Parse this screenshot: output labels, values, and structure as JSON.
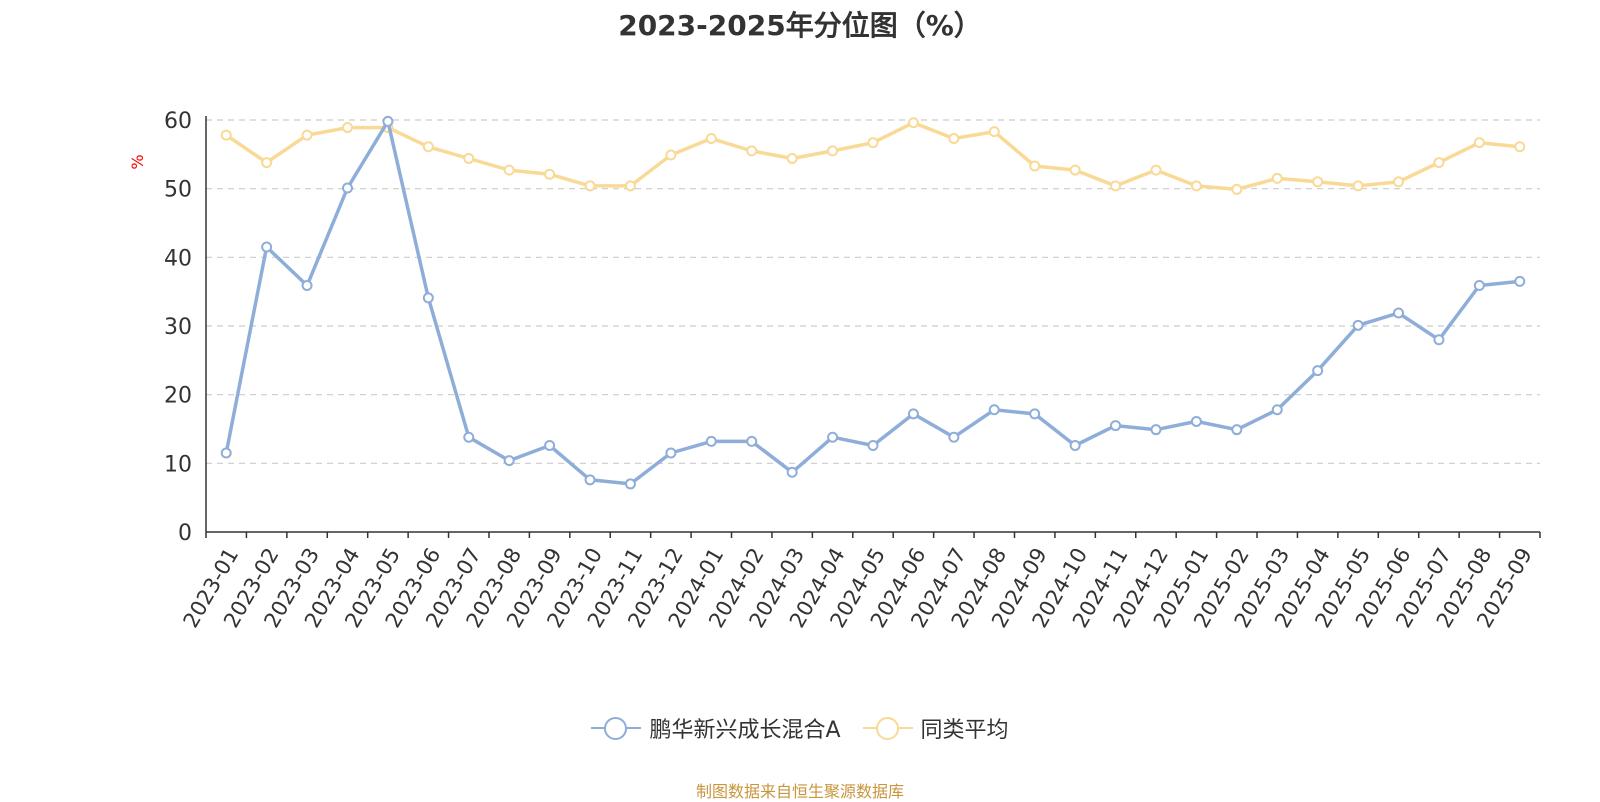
{
  "title": "2023-2025年分位图（%）",
  "source_text": "制图数据来自恒生聚源数据库",
  "colors": {
    "fund": "#8eaed9",
    "peer": "#f9d996",
    "ylabel": "#ff0000",
    "grid": "#cccccc",
    "axis": "#333333"
  },
  "chart_data": {
    "type": "line",
    "ylabel": "%",
    "xlabel": "",
    "ylim": [
      0,
      60
    ],
    "yticks": [
      0,
      10,
      20,
      30,
      40,
      50,
      60
    ],
    "grid": true,
    "legend_position": "bottom",
    "categories": [
      "2023-01",
      "2023-02",
      "2023-03",
      "2023-04",
      "2023-05",
      "2023-06",
      "2023-07",
      "2023-08",
      "2023-09",
      "2023-10",
      "2023-11",
      "2023-12",
      "2024-01",
      "2024-02",
      "2024-03",
      "2024-04",
      "2024-05",
      "2024-06",
      "2024-07",
      "2024-08",
      "2024-09",
      "2024-10",
      "2024-11",
      "2024-12",
      "2025-01",
      "2025-02",
      "2025-03",
      "2025-04",
      "2025-05",
      "2025-06",
      "2025-07",
      "2025-08",
      "2025-09"
    ],
    "series": [
      {
        "name": "鹏华新兴成长混合A",
        "color": "#8eaed9",
        "values": [
          11.5,
          41.5,
          35.9,
          50.1,
          59.8,
          34.1,
          13.8,
          10.4,
          12.6,
          7.6,
          7.0,
          11.5,
          13.2,
          13.2,
          8.7,
          13.8,
          12.6,
          17.2,
          13.8,
          17.8,
          17.2,
          12.6,
          15.5,
          14.9,
          16.1,
          14.9,
          17.8,
          23.5,
          30.1,
          31.9,
          28.0,
          35.9,
          36.5
        ]
      },
      {
        "name": "同类平均",
        "color": "#f9d996",
        "values": [
          57.8,
          53.8,
          57.8,
          58.9,
          58.9,
          56.1,
          54.4,
          52.7,
          52.1,
          50.4,
          50.4,
          54.9,
          57.3,
          55.5,
          54.4,
          55.5,
          56.7,
          59.6,
          57.3,
          58.3,
          53.3,
          52.7,
          50.4,
          52.7,
          50.4,
          49.9,
          51.5,
          51.0,
          50.4,
          51.0,
          53.8,
          56.7,
          56.1
        ]
      }
    ]
  }
}
